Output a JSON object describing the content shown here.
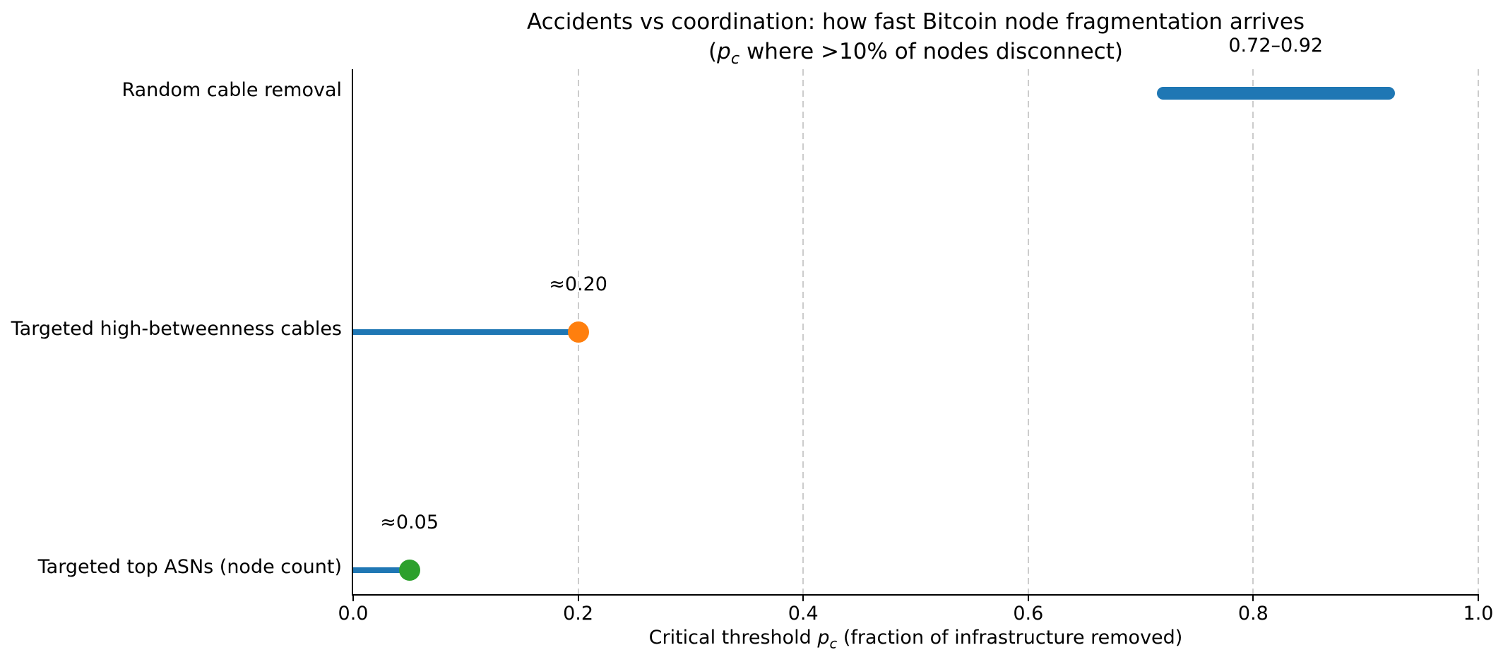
{
  "chart_data": {
    "type": "lollipop-range",
    "title_line1": "Accidents vs coordination: how fast Bitcoin node fragmentation arrives",
    "title_line2": {
      "pre": "(",
      "var": "p",
      "sub": "c",
      "post": " where >10% of nodes disconnect)"
    },
    "xlabel": {
      "pre": "Critical threshold ",
      "var": "p",
      "sub": "c",
      "post": " (fraction of infrastructure removed)"
    },
    "xlim": [
      0.0,
      1.0
    ],
    "xticks": [
      {
        "value": 0.0,
        "label": "0.0"
      },
      {
        "value": 0.2,
        "label": "0.2"
      },
      {
        "value": 0.4,
        "label": "0.4"
      },
      {
        "value": 0.6,
        "label": "0.6"
      },
      {
        "value": 0.8,
        "label": "0.8"
      },
      {
        "value": 1.0,
        "label": "1.0"
      }
    ],
    "grid": "dashed-vertical",
    "legend": "none",
    "colors": {
      "stem": "#1f77b4",
      "range_bar": "#1f77b4",
      "dot_orange": "#ff7f0e",
      "dot_green": "#2ca02c",
      "grid": "#cccccc",
      "axis": "#000000",
      "text": "#000000"
    },
    "items": [
      {
        "label": "Random cable removal",
        "kind": "range",
        "lo": 0.72,
        "hi": 0.92,
        "annotation": "0.72–0.92",
        "color": "#1f77b4"
      },
      {
        "label": "Targeted high-betweenness cables",
        "kind": "lollipop",
        "value": 0.2,
        "annotation": "≈0.20",
        "stem_color": "#1f77b4",
        "dot_color": "#ff7f0e"
      },
      {
        "label": "Targeted top ASNs (node count)",
        "kind": "lollipop",
        "value": 0.05,
        "annotation": "≈0.05",
        "stem_color": "#1f77b4",
        "dot_color": "#2ca02c"
      }
    ]
  }
}
